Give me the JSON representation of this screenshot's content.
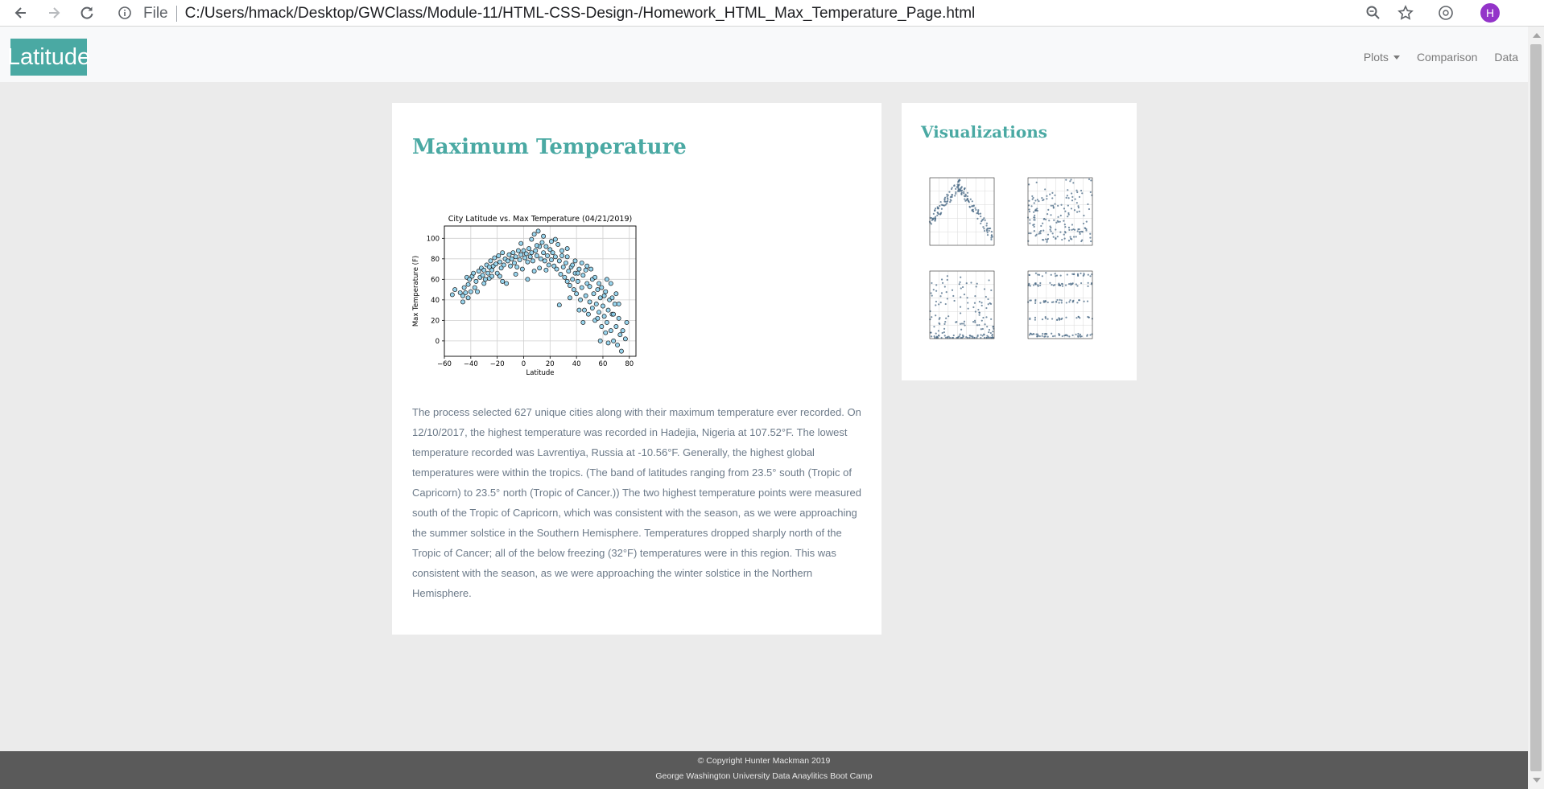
{
  "browser": {
    "url_scheme_label": "File",
    "url": "C:/Users/hmack/Desktop/GWClass/Module-11/HTML-CSS-Design-/Homework_HTML_Max_Temperature_Page.html",
    "profile_initial": "H",
    "icons": [
      "back-arrow-icon",
      "forward-arrow-icon",
      "reload-icon",
      "info-icon",
      "zoom-icon",
      "star-icon",
      "extension-icon"
    ]
  },
  "navbar": {
    "brand": "Latitude",
    "links": [
      "Plots",
      "Comparison",
      "Data"
    ]
  },
  "main": {
    "title": "Maximum Temperature",
    "paragraph": "The process selected 627 unique cities along with their maximum temperature ever recorded. On 12/10/2017, the highest temperature was recorded in Hadejia, Nigeria at 107.52°F. The lowest temperature recorded was Lavrentiya, Russia at -10.56°F. Generally, the highest global temperatures were within the tropics. (The band of latitudes ranging from 23.5° south (Tropic of Capricorn) to 23.5° north (Tropic of Cancer.)) The two highest temperature points were measured south of the Tropic of Capricorn, which was consistent with the season, as we were approaching the summer solstice in the Southern Hemisphere. Temperatures dropped sharply north of the Tropic of Cancer; all of the below freezing (32°F) temperatures were in this region. This was consistent with the season, as we were approaching the winter solstice in the Northern Hemisphere."
  },
  "sidebar": {
    "title": "Visualizations"
  },
  "footer": {
    "line1": "© Copyright Hunter Mackman 2019",
    "line2": "George Washington University Data Anaylitics Boot Camp"
  },
  "colors": {
    "accent": "#4aa9a3",
    "point_fill": "#87ceeb",
    "point_edge": "#1a1a1a",
    "footer_bg": "#5a5a5a"
  },
  "chart_data": {
    "type": "scatter",
    "title": "City Latitude vs. Max Temperature (04/21/2019)",
    "xlabel": "Latitude",
    "ylabel": "Max Temperature (F)",
    "xlim": [
      -60,
      85
    ],
    "ylim": [
      -15,
      112
    ],
    "xticks": [
      -60,
      -40,
      -20,
      0,
      20,
      40,
      60,
      80
    ],
    "yticks": [
      0,
      20,
      40,
      60,
      80,
      100
    ],
    "grid": true,
    "points": [
      [
        -54,
        45
      ],
      [
        -52,
        50
      ],
      [
        -46,
        38
      ],
      [
        -46,
        44
      ],
      [
        -45,
        52
      ],
      [
        -44,
        47
      ],
      [
        -43,
        62
      ],
      [
        -42,
        55
      ],
      [
        -41,
        60
      ],
      [
        -40,
        48
      ],
      [
        -39,
        63
      ],
      [
        -38,
        66
      ],
      [
        -36,
        58
      ],
      [
        -35,
        48
      ],
      [
        -34,
        68
      ],
      [
        -33,
        62
      ],
      [
        -32,
        71
      ],
      [
        -31,
        64
      ],
      [
        -30,
        69
      ],
      [
        -29,
        60
      ],
      [
        -28,
        74
      ],
      [
        -27,
        66
      ],
      [
        -26,
        72
      ],
      [
        -25,
        78
      ],
      [
        -24,
        69
      ],
      [
        -23,
        73
      ],
      [
        -22,
        81
      ],
      [
        -21,
        75
      ],
      [
        -20,
        66
      ],
      [
        -19,
        83
      ],
      [
        -18,
        77
      ],
      [
        -17,
        71
      ],
      [
        -16,
        86
      ],
      [
        -15,
        74
      ],
      [
        -14,
        80
      ],
      [
        -13,
        56
      ],
      [
        -12,
        78
      ],
      [
        -11,
        84
      ],
      [
        -10,
        73
      ],
      [
        -9,
        80
      ],
      [
        -8,
        86
      ],
      [
        -7,
        76
      ],
      [
        -6,
        82
      ],
      [
        -5,
        72
      ],
      [
        -4,
        88
      ],
      [
        -3,
        79
      ],
      [
        -2,
        84
      ],
      [
        -1,
        70
      ],
      [
        0,
        88
      ],
      [
        1,
        81
      ],
      [
        2,
        85
      ],
      [
        3,
        77
      ],
      [
        4,
        90
      ],
      [
        5,
        82
      ],
      [
        6,
        86
      ],
      [
        7,
        78
      ],
      [
        8,
        104
      ],
      [
        9,
        88
      ],
      [
        10,
        83
      ],
      [
        11,
        107
      ],
      [
        12,
        92
      ],
      [
        13,
        80
      ],
      [
        14,
        96
      ],
      [
        15,
        86
      ],
      [
        16,
        78
      ],
      [
        17,
        92
      ],
      [
        18,
        83
      ],
      [
        19,
        74
      ],
      [
        20,
        89
      ],
      [
        21,
        79
      ],
      [
        22,
        86
      ],
      [
        23,
        73
      ],
      [
        24,
        82
      ],
      [
        25,
        70
      ],
      [
        26,
        94
      ],
      [
        27,
        78
      ],
      [
        28,
        65
      ],
      [
        29,
        88
      ],
      [
        30,
        72
      ],
      [
        31,
        62
      ],
      [
        32,
        76
      ],
      [
        33,
        58
      ],
      [
        34,
        68
      ],
      [
        35,
        54
      ],
      [
        36,
        72
      ],
      [
        37,
        60
      ],
      [
        38,
        50
      ],
      [
        39,
        66
      ],
      [
        40,
        46
      ],
      [
        41,
        58
      ],
      [
        42,
        70
      ],
      [
        43,
        40
      ],
      [
        44,
        52
      ],
      [
        45,
        64
      ],
      [
        46,
        30
      ],
      [
        47,
        44
      ],
      [
        48,
        56
      ],
      [
        49,
        26
      ],
      [
        50,
        38
      ],
      [
        51,
        70
      ],
      [
        52,
        32
      ],
      [
        53,
        46
      ],
      [
        54,
        20
      ],
      [
        55,
        36
      ],
      [
        56,
        50
      ],
      [
        57,
        28
      ],
      [
        58,
        42
      ],
      [
        59,
        14
      ],
      [
        60,
        34
      ],
      [
        61,
        24
      ],
      [
        62,
        48
      ],
      [
        63,
        18
      ],
      [
        64,
        30
      ],
      [
        65,
        40
      ],
      [
        66,
        10
      ],
      [
        67,
        26
      ],
      [
        68,
        0
      ],
      [
        69,
        36
      ],
      [
        70,
        14
      ],
      [
        71,
        -4
      ],
      [
        72,
        22
      ],
      [
        73,
        6
      ],
      [
        74,
        -10
      ],
      [
        75,
        10
      ],
      [
        77,
        2
      ],
      [
        78,
        18
      ],
      [
        -48,
        47
      ],
      [
        -37,
        52
      ],
      [
        -26,
        61
      ],
      [
        -18,
        63
      ],
      [
        -6,
        65
      ],
      [
        3,
        60
      ],
      [
        17,
        69
      ],
      [
        24,
        99
      ],
      [
        29,
        83
      ],
      [
        33,
        82
      ],
      [
        37,
        74
      ],
      [
        41,
        66
      ],
      [
        44,
        76
      ],
      [
        47,
        69
      ],
      [
        52,
        60
      ],
      [
        57,
        56
      ],
      [
        61,
        44
      ],
      [
        66,
        56
      ],
      [
        70,
        46
      ],
      [
        45,
        18
      ],
      [
        62,
        8
      ],
      [
        64,
        -2
      ],
      [
        58,
        0
      ],
      [
        27,
        35
      ],
      [
        12,
        71
      ],
      [
        -2,
        95
      ],
      [
        6,
        99
      ],
      [
        10,
        93
      ],
      [
        15,
        102
      ],
      [
        21,
        97
      ],
      [
        33,
        90
      ],
      [
        39,
        78
      ],
      [
        48,
        73
      ],
      [
        50,
        53
      ],
      [
        54,
        62
      ],
      [
        59,
        52
      ],
      [
        63,
        60
      ],
      [
        67,
        42
      ],
      [
        72,
        36
      ],
      [
        35,
        42
      ],
      [
        42,
        30
      ],
      [
        56,
        22
      ],
      [
        68,
        26
      ],
      [
        8,
        68
      ],
      [
        -16,
        58
      ],
      [
        -24,
        63
      ],
      [
        -30,
        56
      ],
      [
        -42,
        42
      ]
    ]
  }
}
